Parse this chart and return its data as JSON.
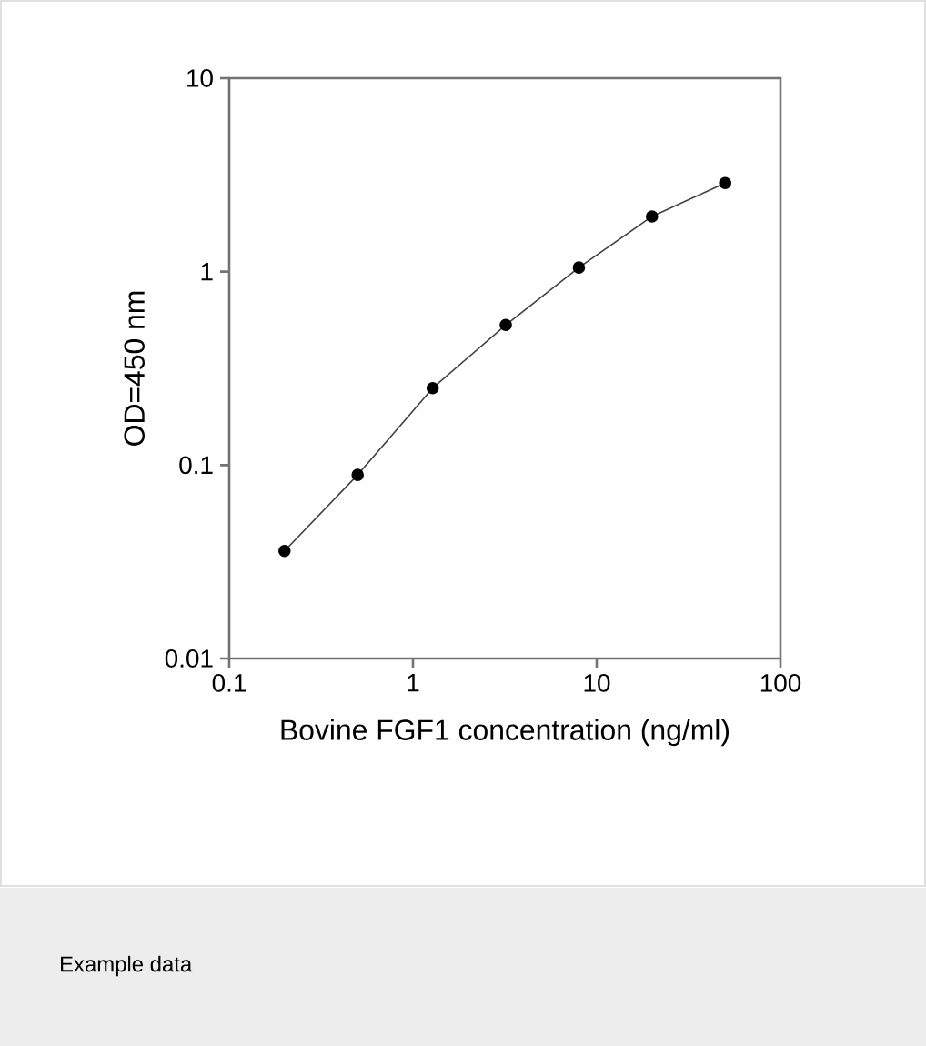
{
  "chart_data": {
    "type": "line",
    "xlabel": "Bovine FGF1 concentration (ng/ml)",
    "ylabel": "OD=450 nm",
    "annotations": [
      "Example data"
    ],
    "x": [
      0.2,
      0.5,
      1.28,
      3.2,
      8,
      20,
      50
    ],
    "series": [
      {
        "color": "#000000",
        "values": [
          0.036,
          0.089,
          0.25,
          0.53,
          1.05,
          1.93,
          2.87
        ]
      }
    ],
    "xlim": [
      0.1,
      100
    ],
    "ylim": [
      0.01,
      10
    ],
    "xticks": [
      0.1,
      1,
      10,
      100
    ],
    "yticks": [
      0.01,
      0.1,
      1,
      10
    ],
    "log": "xy",
    "marker": "circle",
    "line_style": "solid"
  }
}
